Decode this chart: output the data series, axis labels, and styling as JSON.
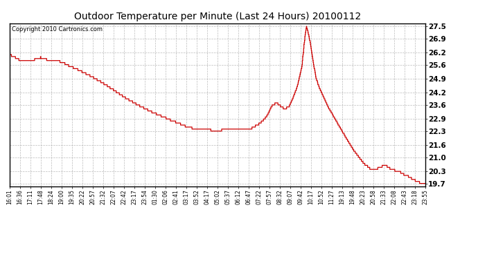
{
  "title": "Outdoor Temperature per Minute (Last 24 Hours) 20100112",
  "copyright": "Copyright 2010 Cartronics.com",
  "line_color": "#cc0000",
  "bg_color": "#ffffff",
  "grid_color": "#aaaaaa",
  "ylim": [
    19.55,
    27.65
  ],
  "yticks": [
    19.7,
    20.3,
    21.0,
    21.6,
    22.3,
    22.9,
    23.6,
    24.2,
    24.9,
    25.6,
    26.2,
    26.9,
    27.5
  ],
  "xtick_labels": [
    "16:01",
    "16:36",
    "17:11",
    "17:48",
    "18:24",
    "19:00",
    "19:35",
    "20:22",
    "20:57",
    "21:32",
    "22:07",
    "22:42",
    "23:17",
    "23:54",
    "01:30",
    "02:06",
    "02:41",
    "03:17",
    "03:52",
    "04:17",
    "05:02",
    "05:37",
    "06:12",
    "06:47",
    "07:22",
    "07:57",
    "08:32",
    "09:07",
    "09:42",
    "10:17",
    "10:52",
    "11:27",
    "19:13",
    "19:48",
    "20:23",
    "20:58",
    "21:33",
    "22:08",
    "22:43",
    "23:18",
    "23:55"
  ],
  "control_points": [
    [
      0,
      26.1
    ],
    [
      30,
      25.85
    ],
    [
      60,
      25.8
    ],
    [
      80,
      25.85
    ],
    [
      100,
      25.95
    ],
    [
      120,
      25.85
    ],
    [
      140,
      25.75
    ],
    [
      155,
      25.78
    ],
    [
      170,
      25.72
    ],
    [
      190,
      25.55
    ],
    [
      220,
      25.35
    ],
    [
      260,
      25.05
    ],
    [
      300,
      24.7
    ],
    [
      340,
      24.3
    ],
    [
      380,
      23.9
    ],
    [
      420,
      23.55
    ],
    [
      460,
      23.25
    ],
    [
      490,
      23.05
    ],
    [
      520,
      22.85
    ],
    [
      545,
      22.7
    ],
    [
      560,
      22.6
    ],
    [
      575,
      22.5
    ],
    [
      590,
      22.45
    ],
    [
      610,
      22.42
    ],
    [
      630,
      22.38
    ],
    [
      650,
      22.35
    ],
    [
      665,
      22.32
    ],
    [
      680,
      22.32
    ],
    [
      700,
      22.42
    ],
    [
      715,
      22.42
    ],
    [
      730,
      22.38
    ],
    [
      750,
      22.35
    ],
    [
      770,
      22.35
    ],
    [
      790,
      22.5
    ],
    [
      810,
      22.7
    ],
    [
      830,
      23.0
    ],
    [
      850,
      23.6
    ],
    [
      865,
      23.7
    ],
    [
      870,
      23.6
    ],
    [
      890,
      23.4
    ],
    [
      905,
      23.55
    ],
    [
      915,
      23.9
    ],
    [
      930,
      24.5
    ],
    [
      945,
      25.5
    ],
    [
      955,
      27.0
    ],
    [
      960,
      27.5
    ],
    [
      965,
      27.2
    ],
    [
      970,
      26.85
    ],
    [
      980,
      25.9
    ],
    [
      990,
      25.0
    ],
    [
      1000,
      24.5
    ],
    [
      1015,
      24.0
    ],
    [
      1030,
      23.5
    ],
    [
      1045,
      23.1
    ],
    [
      1060,
      22.7
    ],
    [
      1075,
      22.3
    ],
    [
      1095,
      21.8
    ],
    [
      1110,
      21.4
    ],
    [
      1125,
      21.1
    ],
    [
      1145,
      20.7
    ],
    [
      1165,
      20.45
    ],
    [
      1175,
      20.35
    ],
    [
      1185,
      20.4
    ],
    [
      1195,
      20.5
    ],
    [
      1205,
      20.55
    ],
    [
      1215,
      20.6
    ],
    [
      1225,
      20.5
    ],
    [
      1235,
      20.4
    ],
    [
      1245,
      20.35
    ],
    [
      1255,
      20.3
    ],
    [
      1265,
      20.25
    ],
    [
      1275,
      20.15
    ],
    [
      1285,
      20.1
    ],
    [
      1295,
      20.0
    ],
    [
      1305,
      19.9
    ],
    [
      1315,
      19.82
    ],
    [
      1325,
      19.75
    ],
    [
      1335,
      19.72
    ],
    [
      1345,
      19.7
    ]
  ]
}
